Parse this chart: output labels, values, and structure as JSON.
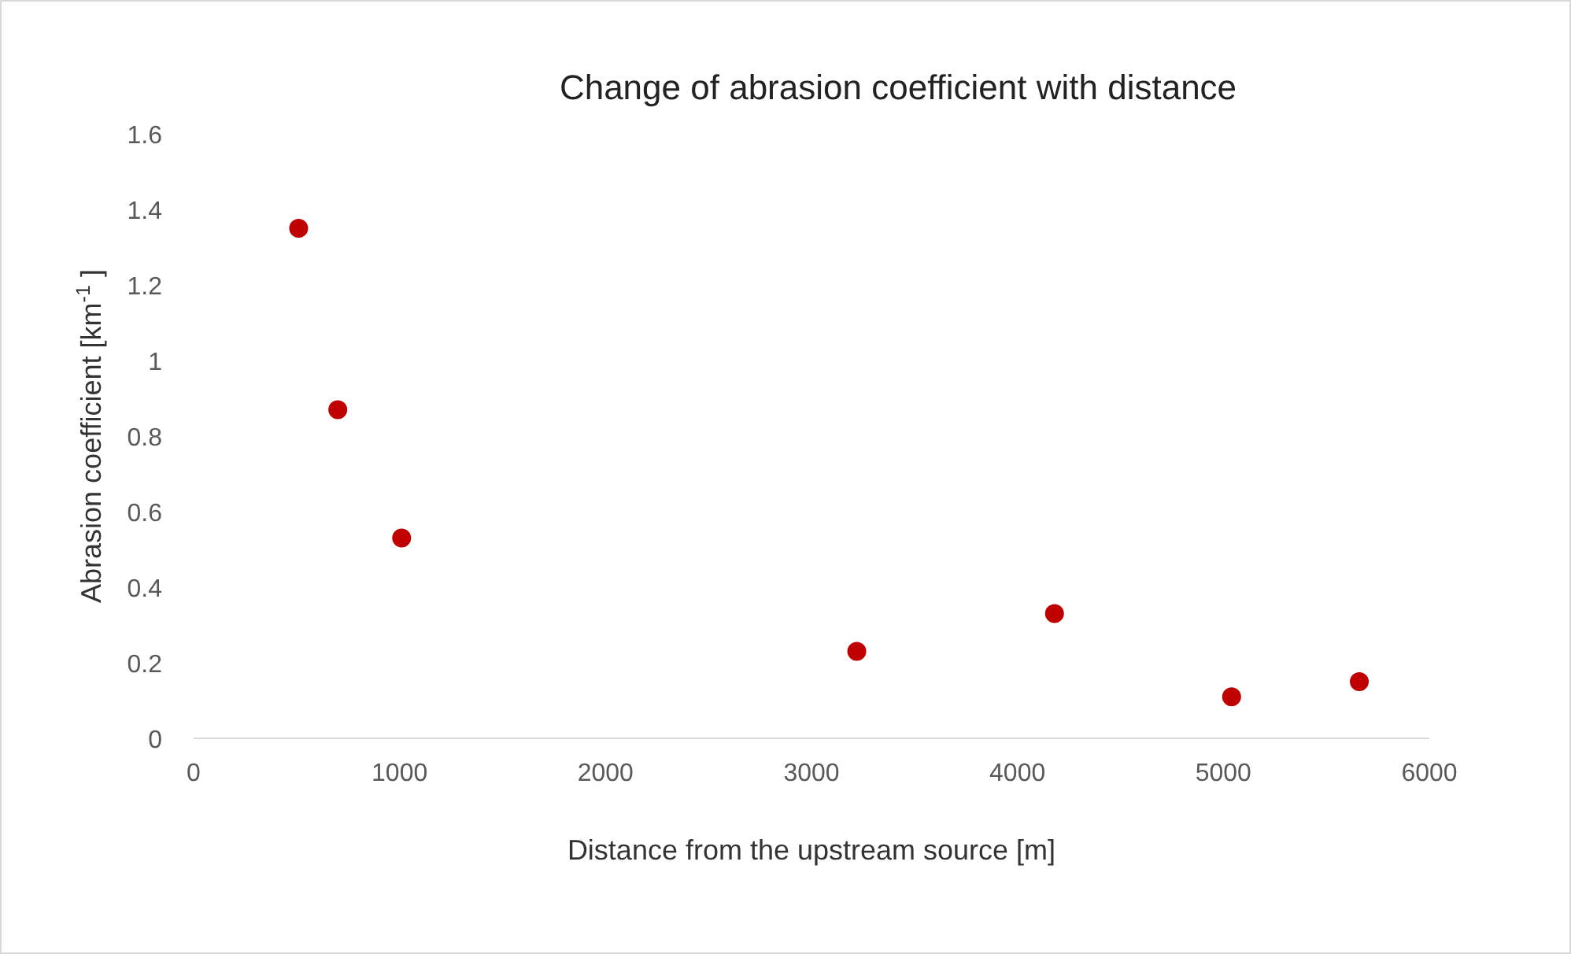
{
  "chart_data": {
    "type": "scatter",
    "title": "Change of abrasion coefficient with distance",
    "xlabel": "Distance from the upstream source [m]",
    "ylabel": "Abrasion coefficient [km$^{-1}$ ]",
    "x": [
      510,
      700,
      1010,
      3220,
      4180,
      5040,
      5660
    ],
    "series": [
      {
        "color": "#c00000",
        "values": [
          1.35,
          0.87,
          0.53,
          0.23,
          0.33,
          0.11,
          0.15
        ]
      }
    ],
    "xlim": [
      0,
      6000
    ],
    "xticks": [
      0,
      1000,
      2000,
      3000,
      4000,
      5000,
      6000
    ],
    "ylim": [
      0,
      1.6
    ],
    "yticks": [
      0,
      0.2,
      0.4,
      0.6,
      0.8,
      1,
      1.2,
      1.4,
      1.6
    ],
    "grid": false,
    "marker": "circle"
  }
}
